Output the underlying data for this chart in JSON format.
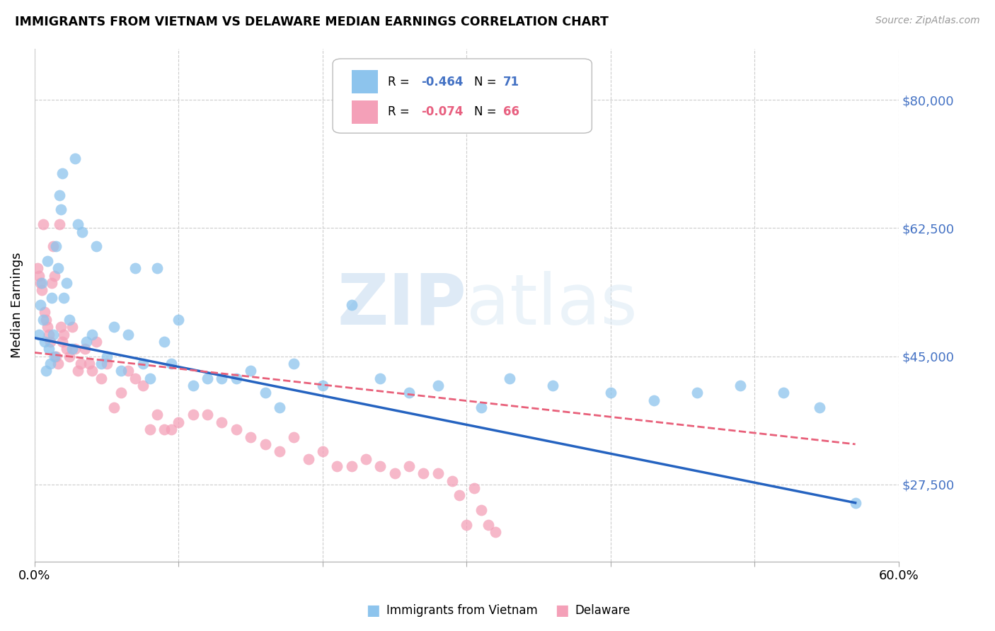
{
  "title": "IMMIGRANTS FROM VIETNAM VS DELAWARE MEDIAN EARNINGS CORRELATION CHART",
  "source": "Source: ZipAtlas.com",
  "ylabel": "Median Earnings",
  "yticks": [
    27500,
    45000,
    62500,
    80000
  ],
  "ytick_labels": [
    "$27,500",
    "$45,000",
    "$62,500",
    "$80,000"
  ],
  "xmin": 0.0,
  "xmax": 0.6,
  "ymin": 17000,
  "ymax": 87000,
  "blue_color": "#8DC4ED",
  "pink_color": "#F4A0B8",
  "line_blue_color": "#2563C0",
  "line_pink_color": "#E8607A",
  "watermark_zip": "ZIP",
  "watermark_atlas": "atlas",
  "legend_label_blue": "Immigrants from Vietnam",
  "legend_label_pink": "Delaware",
  "blue_x": [
    0.003,
    0.004,
    0.005,
    0.006,
    0.007,
    0.008,
    0.009,
    0.01,
    0.011,
    0.012,
    0.013,
    0.014,
    0.015,
    0.016,
    0.017,
    0.018,
    0.019,
    0.02,
    0.022,
    0.024,
    0.026,
    0.028,
    0.03,
    0.033,
    0.036,
    0.04,
    0.043,
    0.046,
    0.05,
    0.055,
    0.06,
    0.065,
    0.07,
    0.075,
    0.08,
    0.085,
    0.09,
    0.095,
    0.1,
    0.11,
    0.12,
    0.13,
    0.14,
    0.15,
    0.16,
    0.17,
    0.18,
    0.2,
    0.22,
    0.24,
    0.26,
    0.28,
    0.31,
    0.33,
    0.36,
    0.4,
    0.43,
    0.46,
    0.49,
    0.52,
    0.545,
    0.57
  ],
  "blue_y": [
    48000,
    52000,
    55000,
    50000,
    47000,
    43000,
    58000,
    46000,
    44000,
    53000,
    48000,
    45000,
    60000,
    57000,
    67000,
    65000,
    70000,
    53000,
    55000,
    50000,
    46000,
    72000,
    63000,
    62000,
    47000,
    48000,
    60000,
    44000,
    45000,
    49000,
    43000,
    48000,
    57000,
    44000,
    42000,
    57000,
    47000,
    44000,
    50000,
    41000,
    42000,
    42000,
    42000,
    43000,
    40000,
    38000,
    44000,
    41000,
    52000,
    42000,
    40000,
    41000,
    38000,
    42000,
    41000,
    40000,
    39000,
    40000,
    41000,
    40000,
    38000,
    25000
  ],
  "pink_x": [
    0.002,
    0.003,
    0.004,
    0.005,
    0.006,
    0.007,
    0.008,
    0.009,
    0.01,
    0.011,
    0.012,
    0.013,
    0.014,
    0.015,
    0.016,
    0.017,
    0.018,
    0.019,
    0.02,
    0.022,
    0.024,
    0.026,
    0.028,
    0.03,
    0.032,
    0.035,
    0.038,
    0.04,
    0.043,
    0.046,
    0.05,
    0.055,
    0.06,
    0.065,
    0.07,
    0.075,
    0.08,
    0.085,
    0.09,
    0.095,
    0.1,
    0.11,
    0.12,
    0.13,
    0.14,
    0.15,
    0.16,
    0.17,
    0.18,
    0.19,
    0.2,
    0.21,
    0.22,
    0.23,
    0.24,
    0.25,
    0.26,
    0.27,
    0.28,
    0.29,
    0.295,
    0.3,
    0.305,
    0.31,
    0.315,
    0.32
  ],
  "pink_y": [
    57000,
    56000,
    55000,
    54000,
    63000,
    51000,
    50000,
    49000,
    48000,
    47000,
    55000,
    60000,
    56000,
    45000,
    44000,
    63000,
    49000,
    47000,
    48000,
    46000,
    45000,
    49000,
    46000,
    43000,
    44000,
    46000,
    44000,
    43000,
    47000,
    42000,
    44000,
    38000,
    40000,
    43000,
    42000,
    41000,
    35000,
    37000,
    35000,
    35000,
    36000,
    37000,
    37000,
    36000,
    35000,
    34000,
    33000,
    32000,
    34000,
    31000,
    32000,
    30000,
    30000,
    31000,
    30000,
    29000,
    30000,
    29000,
    29000,
    28000,
    26000,
    22000,
    27000,
    24000,
    22000,
    21000
  ]
}
